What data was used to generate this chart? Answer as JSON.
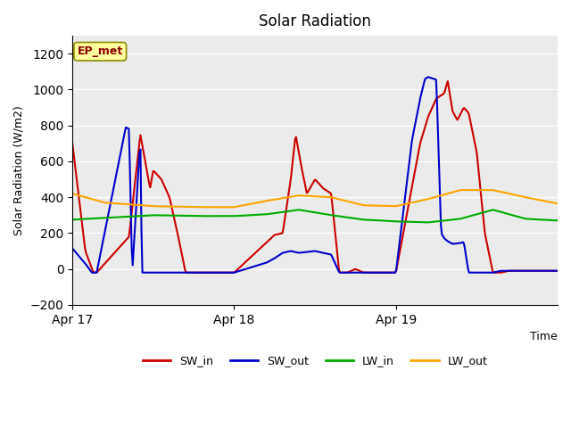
{
  "title": "Solar Radiation",
  "ylabel": "Solar Radiation (W/m2)",
  "xlabel": "Time",
  "ylim": [
    -200,
    1300
  ],
  "yticks": [
    -200,
    0,
    200,
    400,
    600,
    800,
    1000,
    1200
  ],
  "annotation_text": "EP_met",
  "annotation_color": "#8B0000",
  "annotation_bg": "#FFFFA0",
  "bg_color": "#E8E8E8",
  "plot_bg": "#E8E8E8",
  "grid_color": "white",
  "colors": {
    "SW_in": "#CC0000",
    "SW_out": "#0000CC",
    "LW_in": "#00AA00",
    "LW_out": "#FFA500"
  },
  "days": [
    "Apr 17",
    "Apr 18",
    "Apr 19"
  ],
  "n_points": 144,
  "hours_total": 72
}
